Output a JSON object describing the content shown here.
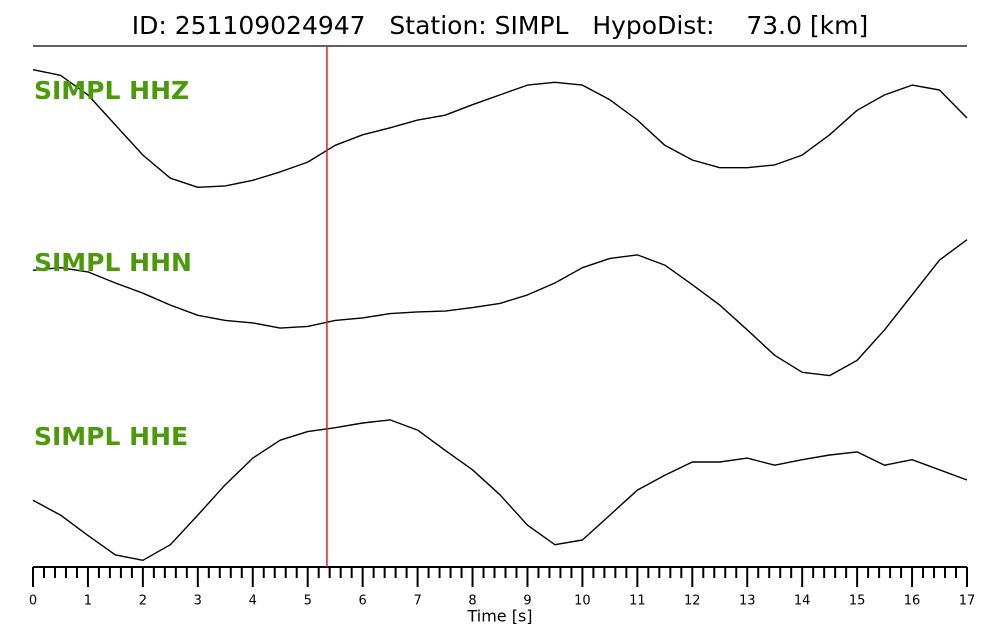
{
  "chart_data": {
    "type": "waveform",
    "title": "ID: 251109024947   Station: SIMPL   HypoDist:    73.0 [km]",
    "xlabel": "Time [s]",
    "xlim": [
      0,
      17
    ],
    "xticks": [
      0,
      1,
      2,
      3,
      4,
      5,
      6,
      7,
      8,
      9,
      10,
      11,
      12,
      13,
      14,
      15,
      16,
      17
    ],
    "minor_xticks": [
      0.2,
      0.4,
      0.6,
      0.8,
      1.2,
      1.4,
      1.6,
      1.8,
      2.2,
      2.4,
      2.6,
      2.8,
      3.2,
      3.4,
      3.6,
      3.8,
      4.2,
      4.4,
      4.6,
      4.8,
      5.2,
      5.4,
      5.6,
      5.8,
      6.2,
      6.4,
      6.6,
      6.8,
      7.2,
      7.4,
      7.6,
      7.8,
      8.2,
      8.4,
      8.6,
      8.8,
      9.2,
      9.4,
      9.6,
      9.8,
      10.2,
      10.4,
      10.6,
      10.8,
      11.2,
      11.4,
      11.6,
      11.8,
      12.2,
      12.4,
      12.6,
      12.8,
      13.2,
      13.4,
      13.6,
      13.8,
      14.2,
      14.4,
      14.6,
      14.8,
      15.2,
      15.4,
      15.6,
      15.8,
      16.2,
      16.4,
      16.6,
      16.8
    ],
    "ylim": [
      -1,
      1
    ],
    "pick_time": 5.35,
    "pick_color": "#e02020",
    "label_color": "#4a9a0a",
    "x": [
      0,
      0.5,
      1,
      1.5,
      2,
      2.5,
      3,
      3.5,
      4,
      4.5,
      5,
      5.5,
      6,
      6.5,
      7,
      7.5,
      8,
      8.5,
      9,
      9.5,
      10,
      10.5,
      11,
      11.5,
      12,
      12.5,
      13,
      13.5,
      14,
      14.5,
      15,
      15.5,
      16,
      16.5,
      17
    ],
    "series": [
      {
        "name": "SIMPL HHZ",
        "color": "#000000",
        "values": [
          0.69,
          0.61,
          0.33,
          -0.1,
          -0.53,
          -0.86,
          -0.99,
          -0.97,
          -0.89,
          -0.77,
          -0.63,
          -0.39,
          -0.24,
          -0.14,
          -0.03,
          0.04,
          0.19,
          0.33,
          0.47,
          0.51,
          0.47,
          0.26,
          -0.03,
          -0.39,
          -0.6,
          -0.71,
          -0.71,
          -0.67,
          -0.53,
          -0.24,
          0.11,
          0.33,
          0.47,
          0.4,
          0
        ]
      },
      {
        "name": "SIMPL HHN",
        "color": "#000000",
        "values": [
          0.35,
          0.38,
          0.33,
          0.2,
          0.08,
          -0.06,
          -0.18,
          -0.24,
          -0.27,
          -0.33,
          -0.31,
          -0.24,
          -0.21,
          -0.16,
          -0.14,
          -0.13,
          -0.09,
          -0.04,
          0.06,
          0.2,
          0.38,
          0.49,
          0.53,
          0.41,
          0.18,
          -0.06,
          -0.35,
          -0.65,
          -0.85,
          -0.89,
          -0.71,
          -0.35,
          0.06,
          0.47,
          0.71
        ]
      },
      {
        "name": "SIMPL HHE",
        "color": "#000000",
        "values": [
          -0.17,
          -0.36,
          -0.62,
          -0.87,
          -0.94,
          -0.74,
          -0.36,
          0.03,
          0.37,
          0.6,
          0.71,
          0.76,
          0.82,
          0.86,
          0.73,
          0.47,
          0.22,
          -0.1,
          -0.49,
          -0.74,
          -0.68,
          -0.36,
          -0.04,
          0.15,
          0.32,
          0.32,
          0.37,
          0.28,
          0.35,
          0.41,
          0.45,
          0.28,
          0.35,
          0.22,
          0.09
        ]
      }
    ]
  }
}
